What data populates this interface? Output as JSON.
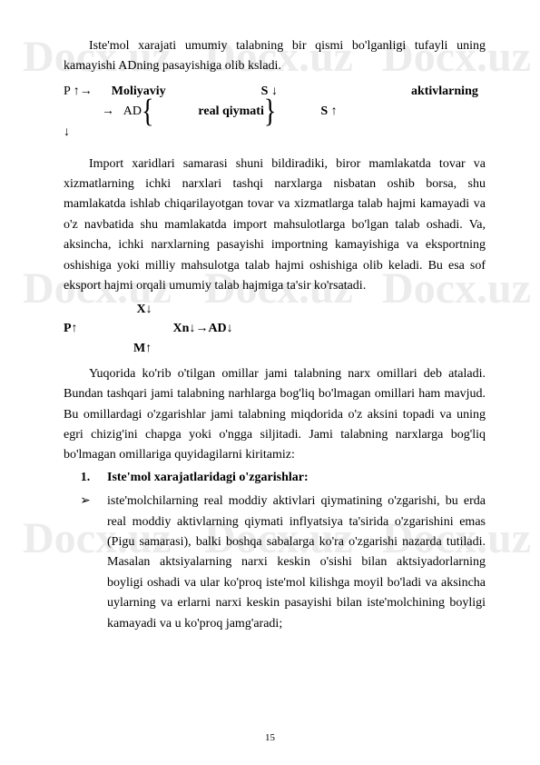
{
  "watermark": "Docx.uz",
  "para1": "Iste'mol xarajati umumiy talabning bir qismi bo'lganligi tufayli uning kamayishi ADning pasayishiga olib ksladi.",
  "formula1": {
    "line1_pre": "P ↑→      ",
    "line1_bold": "Moliyaviy                              S ↓                                          aktivlarning",
    "line2_pre": "            →   AD",
    "line2_mid": "              real qiymati",
    "line2_post": "              S ↑",
    "line3": "↓"
  },
  "para2": "Import xaridlari samarasi shuni bildiradiki, biror mamlakatda tovar va xizmatlarning ichki narxlari tashqi narxlarga nisbatan oshib borsa, shu mamlakatda ishlab chiqarilayotgan tovar va xizmatlarga talab hajmi kamayadi va o'z navbatida shu mamlakatda import mahsulotlarga bo'lgan talab oshadi. Va, aksincha, ichki narxlarning pasayishi importning kamayishiga va eksportning oshishiga yoki milliy mahsulotga talab hajmi oshishiga olib keladi. Bu esa sof eksport hajmi orqali umumiy talab hajmiga ta'sir   ko'rsatadi.",
  "formula2": {
    "line1": "                       X↓",
    "line2_pre": "P↑                              Xn↓→AD↓",
    "line3": "                      M↑"
  },
  "para3": "Yuqorida ko'rib o'tilgan omillar jami talabning narx omillari deb ataladi. Bundan tashqari jami talabning narhlarga bog'liq bo'lmagan omillari ham mavjud. Bu omillardagi o'zgarishlar jami talabning miqdorida o'z aksini topadi va uning egri chizig'ini chapga yoki o'ngga siljitadi. Jami talabning narxlarga bog'liq bo'lmagan omillariga quyidagilarni kiritamiz:",
  "list": {
    "num": "1.",
    "title": "Iste'mol xarajatlaridagi o'zgarishlar:",
    "arrow": "➢",
    "item1": "iste'molchilarning real moddiy aktivlari qiymatining o'zgarishi, bu erda real moddiy aktivlarning qiymati inflyatsiya ta'sirida o'zgarishini emas (Pigu samarasi), balki boshqa sabalarga ko'ra o'zgarishi nazarda tutiladi. Masalan aktsiyalarning narxi keskin o'sishi bilan aktsiyadorlarning boyligi oshadi va ular ko'proq iste'mol kilishga moyil bo'ladi va aksincha uylarning va erlarni narxi keskin pasayishi bilan iste'molchining boyligi kamayadi va u ko'proq jamg'aradi;"
  },
  "pageNumber": "15"
}
